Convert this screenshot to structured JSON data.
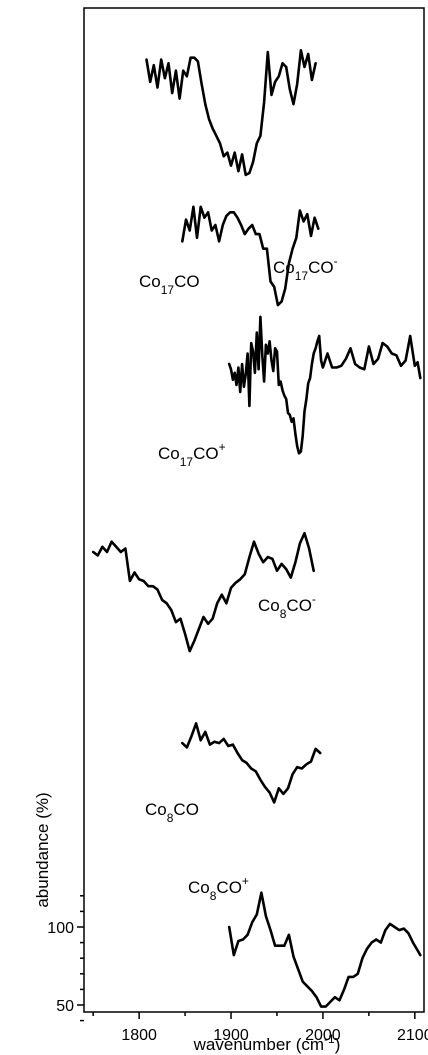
{
  "chart_data": {
    "type": "line",
    "xlabel": "wavenumber (cm⁻¹)",
    "ylabel": "abundance (%)",
    "xlim": [
      1740,
      2110
    ],
    "x_ticks": [
      1800,
      1900,
      2000,
      2100
    ],
    "y_ticks": [
      50,
      100
    ],
    "grid": false,
    "series": [
      {
        "name": "Co17CO-",
        "label": {
          "base": "Co",
          "sub": "17",
          "rest": "CO",
          "sup": "-"
        },
        "color": "#000000",
        "x": [
          1808,
          1812,
          1816,
          1820,
          1824,
          1828,
          1832,
          1836,
          1840,
          1844,
          1848,
          1852,
          1856,
          1860,
          1864,
          1868,
          1872,
          1876,
          1880,
          1884,
          1888,
          1892,
          1896,
          1900,
          1904,
          1908,
          1912,
          1916,
          1920,
          1924,
          1928,
          1932,
          1936,
          1940,
          1944,
          1948,
          1952,
          1956,
          1960,
          1964,
          1968,
          1972,
          1976,
          1980,
          1984,
          1988,
          1992
        ],
        "y": [
          97,
          85,
          94,
          82,
          97,
          87,
          95,
          79,
          91,
          76,
          91,
          88,
          98,
          98,
          96,
          84,
          73,
          65,
          60,
          56,
          52,
          45,
          47,
          40,
          47,
          37,
          46,
          35,
          36,
          42,
          52,
          56,
          74,
          101,
          78,
          85,
          88,
          95,
          93,
          81,
          73,
          84,
          102,
          93,
          100,
          86,
          95
        ]
      },
      {
        "name": "Co17CO",
        "label": {
          "base": "Co",
          "sub": "17",
          "rest": "CO",
          "sup": ""
        },
        "color": "#000000",
        "x": [
          1847,
          1851,
          1855,
          1859,
          1863,
          1867,
          1871,
          1875,
          1879,
          1883,
          1887,
          1891,
          1895,
          1899,
          1903,
          1907,
          1911,
          1915,
          1919,
          1923,
          1927,
          1931,
          1935,
          1939,
          1943,
          1947,
          1951,
          1955,
          1959,
          1963,
          1967,
          1971,
          1975,
          1979,
          1983,
          1987,
          1991,
          1995
        ],
        "y": [
          80,
          92,
          86,
          99,
          82,
          99,
          93,
          96,
          86,
          89,
          80,
          89,
          94,
          96,
          96,
          93,
          89,
          84,
          87,
          89,
          84,
          84,
          76,
          76,
          58,
          55,
          45,
          47,
          54,
          68,
          76,
          82,
          97,
          91,
          95,
          83,
          93,
          87
        ]
      },
      {
        "name": "Co17CO+",
        "label": {
          "base": "Co",
          "sub": "17",
          "rest": "CO",
          "sup": "+"
        },
        "color": "#000000",
        "x": [
          1898,
          1900,
          1902,
          1904,
          1906,
          1908,
          1910,
          1912,
          1914,
          1916,
          1918,
          1920,
          1922,
          1924,
          1926,
          1928,
          1930,
          1932,
          1934,
          1936,
          1938,
          1940,
          1942,
          1944,
          1946,
          1948,
          1950,
          1952,
          1954,
          1956,
          1958,
          1960,
          1962,
          1964,
          1966,
          1968,
          1970,
          1972,
          1974,
          1976,
          1978,
          1980,
          1982,
          1984,
          1986,
          1988,
          1990,
          1992,
          1994,
          1996,
          1998,
          2000,
          2005,
          2010,
          2015,
          2020,
          2025,
          2030,
          2035,
          2040,
          2045,
          2050,
          2055,
          2060,
          2065,
          2070,
          2075,
          2080,
          2085,
          2090,
          2095,
          2100,
          2103,
          2106
        ],
        "y": [
          88,
          85,
          79,
          83,
          76,
          86,
          72,
          88,
          75,
          82,
          94,
          64,
          100,
          95,
          83,
          106,
          85,
          115,
          93,
          78,
          99,
          94,
          101,
          90,
          84,
          97,
          95,
          76,
          78,
          73,
          70,
          68,
          60,
          59,
          55,
          57,
          48,
          41,
          37,
          38,
          47,
          61,
          68,
          77,
          80,
          88,
          94,
          97,
          101,
          104,
          90,
          86,
          94,
          86,
          86,
          87,
          91,
          97,
          88,
          86,
          85,
          98,
          88,
          91,
          100,
          98,
          94,
          93,
          87,
          90,
          104,
          87,
          89,
          80
        ]
      },
      {
        "name": "Co8CO-",
        "label": {
          "base": "Co",
          "sub": "8",
          "rest": "CO",
          "sup": "-"
        },
        "color": "#000000",
        "x": [
          1750,
          1755,
          1760,
          1765,
          1770,
          1775,
          1780,
          1785,
          1790,
          1795,
          1800,
          1805,
          1810,
          1815,
          1820,
          1825,
          1830,
          1835,
          1840,
          1845,
          1850,
          1855,
          1860,
          1865,
          1870,
          1875,
          1880,
          1885,
          1890,
          1895,
          1900,
          1905,
          1910,
          1915,
          1920,
          1925,
          1930,
          1935,
          1940,
          1945,
          1950,
          1955,
          1960,
          1965,
          1970,
          1975,
          1980,
          1985,
          1990
        ],
        "y": [
          93,
          91,
          96,
          93,
          99,
          96,
          93,
          95,
          76,
          81,
          77,
          76,
          73,
          73,
          71,
          65,
          63,
          59,
          52,
          54,
          45,
          35,
          41,
          48,
          55,
          51,
          54,
          63,
          68,
          63,
          72,
          75,
          77,
          80,
          90,
          99,
          92,
          87,
          90,
          89,
          82,
          86,
          83,
          78,
          87,
          98,
          104,
          95,
          82
        ]
      },
      {
        "name": "Co8CO",
        "label": {
          "base": "Co",
          "sub": "8",
          "rest": "CO",
          "sup": ""
        },
        "color": "#000000",
        "x": [
          1847,
          1852,
          1857,
          1862,
          1867,
          1872,
          1877,
          1882,
          1887,
          1892,
          1897,
          1902,
          1907,
          1912,
          1917,
          1922,
          1927,
          1932,
          1937,
          1942,
          1947,
          1952,
          1957,
          1962,
          1967,
          1972,
          1977,
          1982,
          1987,
          1992,
          1997
        ],
        "y": [
          85,
          82,
          90,
          99,
          87,
          93,
          84,
          86,
          85,
          88,
          83,
          84,
          78,
          73,
          71,
          67,
          65,
          59,
          54,
          50,
          43,
          53,
          49,
          53,
          63,
          68,
          67,
          70,
          72,
          81,
          78
        ]
      },
      {
        "name": "Co8CO+",
        "label": {
          "base": "Co",
          "sub": "8",
          "rest": "CO",
          "sup": "+"
        },
        "color": "#000000",
        "x": [
          1898,
          1903,
          1908,
          1913,
          1918,
          1923,
          1928,
          1933,
          1938,
          1943,
          1948,
          1953,
          1958,
          1963,
          1968,
          1973,
          1978,
          1983,
          1988,
          1993,
          1998,
          2003,
          2008,
          2013,
          2018,
          2023,
          2028,
          2033,
          2038,
          2043,
          2048,
          2053,
          2058,
          2063,
          2068,
          2073,
          2078,
          2083,
          2088,
          2093,
          2098,
          2103,
          2106
        ],
        "y": [
          100,
          82,
          91,
          92,
          95,
          103,
          108,
          122,
          107,
          98,
          88,
          88,
          88,
          95,
          81,
          73,
          65,
          62,
          59,
          55,
          49,
          49,
          52,
          55,
          53,
          60,
          68,
          68,
          70,
          80,
          86,
          90,
          92,
          90,
          98,
          102,
          100,
          98,
          99,
          96,
          90,
          85,
          82
        ]
      }
    ]
  }
}
